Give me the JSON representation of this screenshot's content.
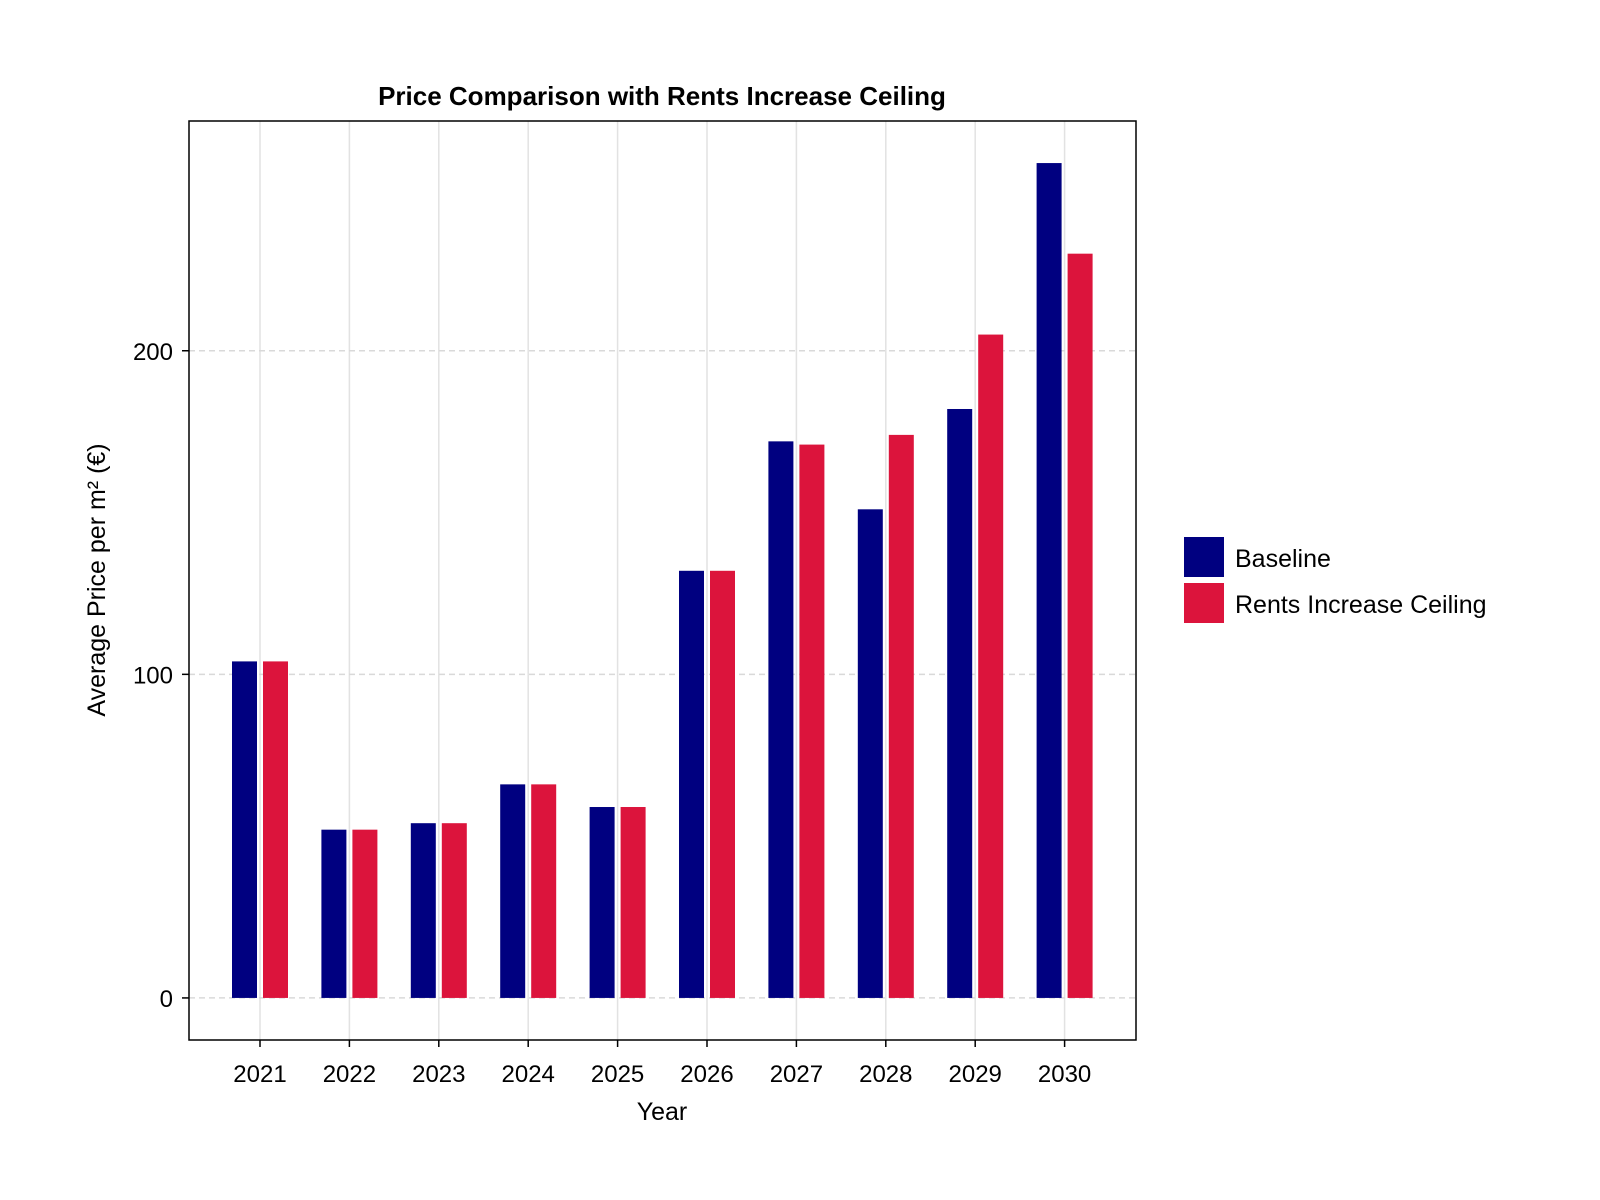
{
  "chart_data": {
    "type": "bar",
    "title": "Price Comparison with Rents Increase Ceiling",
    "xlabel": "Year",
    "ylabel": "Average Price per m² (€)",
    "categories": [
      "2021",
      "2022",
      "2023",
      "2024",
      "2025",
      "2026",
      "2027",
      "2028",
      "2029",
      "2030"
    ],
    "series": [
      {
        "name": "Baseline",
        "color": "#000080",
        "values": [
          104,
          52,
          54,
          66,
          59,
          132,
          172,
          151,
          182,
          258
        ]
      },
      {
        "name": "Rents Increase Ceiling",
        "color": "#DC143C",
        "values": [
          104,
          52,
          54,
          66,
          59,
          132,
          171,
          174,
          205,
          230
        ]
      }
    ],
    "yticks": [
      0,
      100,
      200
    ],
    "ytick_labels": [
      "0",
      "100",
      "200"
    ],
    "ylim": [
      -13,
      271
    ],
    "grid": true,
    "legend_position": "right"
  }
}
